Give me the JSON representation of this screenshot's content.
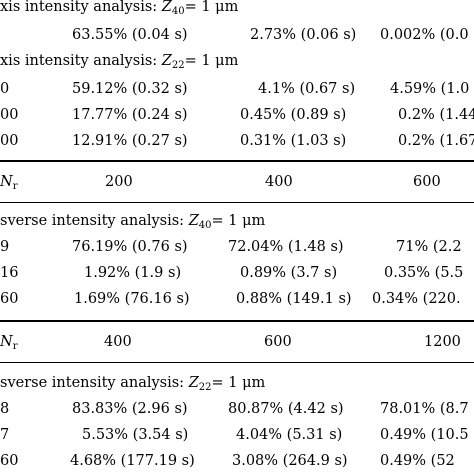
{
  "sections": [
    {
      "title_prefix": "xis intensity analysis: ",
      "title_var": "Z",
      "title_sub": "40",
      "title_suffix": "= 1 μm",
      "rows": [
        {
          "label": "",
          "v": [
            "63.55% (0.04 s)",
            "2.73% (0.06 s)",
            "0.002% (0.0"
          ]
        }
      ]
    },
    {
      "title_prefix": "xis intensity analysis: ",
      "title_var": "Z",
      "title_sub": "22",
      "title_suffix": "= 1 μm",
      "rows": [
        {
          "label": "0",
          "v": [
            "59.12% (0.32 s)",
            "4.1% (0.67 s)",
            "4.59% (1.0"
          ]
        },
        {
          "label": "00",
          "v": [
            "17.77% (0.24 s)",
            "0.45% (0.89 s)",
            "0.2% (1.44"
          ]
        },
        {
          "label": "00",
          "v": [
            "12.91% (0.27 s)",
            "0.31% (1.03 s)",
            "0.2% (1.67"
          ]
        }
      ]
    }
  ],
  "header1": {
    "label_var": "N",
    "label_sub": "r",
    "cols": [
      "200",
      "400",
      "600"
    ]
  },
  "section3": {
    "title_prefix": "sverse intensity analysis: ",
    "title_var": "Z",
    "title_sub": "40",
    "title_suffix": "= 1 μm",
    "rows": [
      {
        "label": "9",
        "v": [
          "76.19% (0.76 s)",
          "72.04% (1.48 s)",
          "71% (2.2"
        ]
      },
      {
        "label": "16",
        "v": [
          "1.92% (1.9 s)",
          "0.89% (3.7 s)",
          "0.35% (5.5"
        ]
      },
      {
        "label": "60",
        "v": [
          "1.69% (76.16 s)",
          "0.88% (149.1 s)",
          "0.34% (220."
        ]
      }
    ]
  },
  "header2": {
    "label_var": "N",
    "label_sub": "r",
    "cols": [
      "400",
      "600",
      "1200"
    ]
  },
  "section4": {
    "title_prefix": "sverse intensity analysis: ",
    "title_var": "Z",
    "title_sub": "22",
    "title_suffix": "= 1 μm",
    "rows": [
      {
        "label": "8",
        "v": [
          "83.83% (2.96 s)",
          "80.87% (4.42 s)",
          "78.01% (8.7"
        ]
      },
      {
        "label": "7",
        "v": [
          "5.53% (3.54 s)",
          "4.04% (5.31 s)",
          "0.49% (10.5"
        ]
      },
      {
        "label": "60",
        "v": [
          "4.68% (177.19 s)",
          "3.08% (264.9 s)",
          "0.49% (52"
        ]
      }
    ]
  }
}
